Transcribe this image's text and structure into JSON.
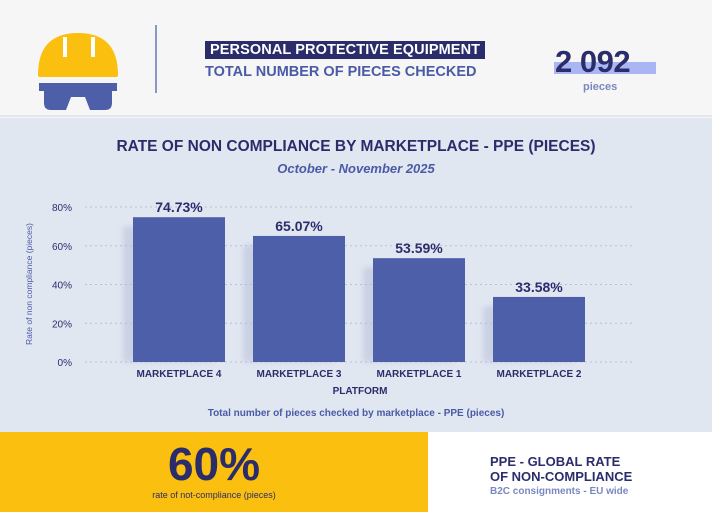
{
  "header": {
    "line1": "PERSONAL PROTECTIVE EQUIPMENT",
    "line2": "TOTAL NUMBER OF PIECES CHECKED",
    "total": "2 092",
    "unit": "pieces",
    "icon": "hard-hat-goggles-icon"
  },
  "colors": {
    "navy": "#2b2d6b",
    "bar": "#4d5fa9",
    "yellow": "#fbbf0f",
    "panel": "#e1e7f1"
  },
  "chart_data": {
    "type": "bar",
    "title": "RATE OF NON COMPLIANCE BY MARKETPLACE - PPE (PIECES)",
    "subtitle": "October - November 2025",
    "xlabel": "PLATFORM",
    "ylabel": "Rate of non compliance (pieces)",
    "categories": [
      "MARKETPLACE 4",
      "MARKETPLACE 3",
      "MARKETPLACE 1",
      "MARKETPLACE 2"
    ],
    "values": [
      74.73,
      65.07,
      53.59,
      33.58
    ],
    "labels": [
      "74.73%",
      "65.07%",
      "53.59%",
      "33.58%"
    ],
    "ylim": [
      0,
      80
    ],
    "yticks": [
      "0%",
      "20%",
      "40%",
      "60%",
      "80%"
    ],
    "grid": true,
    "footnote": "Total number of pieces checked by marketplace - PPE (pieces)"
  },
  "summary": {
    "value": "60%",
    "label": "rate of not-compliance (pieces)",
    "title_line1": "PPE - GLOBAL RATE",
    "title_line2": "OF NON-COMPLIANCE",
    "subtitle": "B2C consignments - EU wide"
  }
}
